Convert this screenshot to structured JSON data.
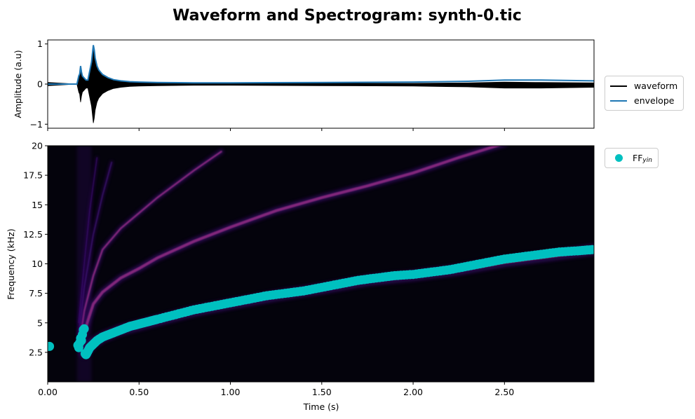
{
  "title": "Waveform and Spectrogram: synth-0.tic",
  "colors": {
    "waveform": "#000000",
    "envelope": "#1f77b4",
    "ff": "#00c0c0",
    "spectrogram_bg": "#04030c",
    "spectrogram_magma": [
      "#04030c",
      "#3b0f70",
      "#8c2981",
      "#de4968",
      "#fe9f6d"
    ]
  },
  "chart_data": [
    {
      "type": "line",
      "ylabel": "Amplitude (a.u)",
      "xlim": [
        0,
        2.99
      ],
      "ylim": [
        -1.1,
        1.1
      ],
      "yticks": [
        -1,
        0,
        1
      ],
      "ytick_labels": [
        "−1",
        "0",
        "1"
      ],
      "xticks": [
        0,
        0.5,
        1.0,
        1.5,
        2.0,
        2.5
      ],
      "grid": false,
      "legend_placement": "outside-right",
      "series": [
        {
          "name": "waveform",
          "x": [
            0,
            0.16,
            0.17,
            0.175,
            0.18,
            0.185,
            0.19,
            0.2,
            0.21,
            0.22,
            0.24,
            0.25,
            0.255,
            0.26,
            0.27,
            0.28,
            0.3,
            0.33,
            0.36,
            0.4,
            0.45,
            0.5,
            0.6,
            0.8,
            1.0,
            1.5,
            2.0,
            2.3,
            2.5,
            2.7,
            2.99
          ],
          "upper": [
            0.04,
            0.0,
            0.2,
            0.25,
            0.42,
            0.3,
            0.2,
            0.15,
            0.1,
            0.1,
            0.55,
            0.95,
            0.85,
            0.65,
            0.45,
            0.35,
            0.24,
            0.16,
            0.11,
            0.07,
            0.05,
            0.04,
            0.03,
            0.02,
            0.02,
            0.02,
            0.02,
            0.03,
            0.05,
            0.04,
            0.03
          ],
          "lower": [
            -0.04,
            0.0,
            -0.2,
            -0.25,
            -0.45,
            -0.3,
            -0.2,
            -0.15,
            -0.1,
            -0.1,
            -0.55,
            -0.97,
            -0.85,
            -0.65,
            -0.45,
            -0.35,
            -0.24,
            -0.16,
            -0.11,
            -0.08,
            -0.06,
            -0.05,
            -0.04,
            -0.03,
            -0.03,
            -0.04,
            -0.05,
            -0.07,
            -0.1,
            -0.1,
            -0.08
          ]
        },
        {
          "name": "envelope",
          "x": [
            0,
            0.16,
            0.17,
            0.175,
            0.18,
            0.185,
            0.19,
            0.2,
            0.21,
            0.22,
            0.24,
            0.25,
            0.255,
            0.26,
            0.27,
            0.28,
            0.3,
            0.33,
            0.36,
            0.4,
            0.45,
            0.5,
            0.6,
            0.8,
            1.0,
            1.5,
            2.0,
            2.3,
            2.5,
            2.7,
            2.99
          ],
          "y": [
            0.0,
            0.0,
            0.2,
            0.25,
            0.45,
            0.3,
            0.2,
            0.15,
            0.1,
            0.1,
            0.55,
            0.97,
            0.85,
            0.65,
            0.45,
            0.35,
            0.24,
            0.16,
            0.11,
            0.08,
            0.06,
            0.05,
            0.04,
            0.03,
            0.03,
            0.04,
            0.05,
            0.07,
            0.1,
            0.1,
            0.08
          ]
        }
      ]
    },
    {
      "type": "heatmap",
      "xlabel": "Time (s)",
      "ylabel": "Frequency (kHz)",
      "xlim": [
        0,
        2.99
      ],
      "ylim": [
        0,
        20
      ],
      "xticks": [
        0,
        0.5,
        1.0,
        1.5,
        2.0,
        2.5
      ],
      "xtick_labels": [
        "0.00",
        "0.50",
        "1.00",
        "1.50",
        "2.00",
        "2.50"
      ],
      "yticks": [
        2.5,
        5,
        7.5,
        10,
        12.5,
        15,
        17.5,
        20
      ],
      "ytick_labels": [
        "2.5",
        "5",
        "7.5",
        "10",
        "12.5",
        "15",
        "17.5",
        "20"
      ],
      "grid": false,
      "legend_placement": "outside-right",
      "harmonics": [
        {
          "x": [
            0.2,
            0.25,
            0.3,
            0.4,
            0.5,
            0.6,
            0.8,
            1.0,
            1.25,
            1.5,
            1.75,
            2.0,
            2.25,
            2.5,
            2.75,
            2.99
          ],
          "y": [
            2.5,
            3.3,
            3.8,
            4.4,
            4.8,
            5.2,
            6.0,
            6.6,
            7.3,
            7.9,
            8.6,
            9.0,
            9.5,
            10.2,
            10.7,
            11.2
          ]
        },
        {
          "x": [
            0.18,
            0.22,
            0.25,
            0.3,
            0.4,
            0.5,
            0.6,
            0.8,
            1.0,
            1.25,
            1.5,
            1.75,
            2.0,
            2.25,
            2.5
          ],
          "y": [
            3.2,
            5.2,
            6.6,
            7.6,
            8.8,
            9.6,
            10.5,
            11.9,
            13.1,
            14.5,
            15.6,
            16.6,
            17.7,
            19.0,
            20.2
          ]
        },
        {
          "x": [
            0.17,
            0.2,
            0.25,
            0.3,
            0.4,
            0.5,
            0.6,
            0.8,
            0.95
          ],
          "y": [
            3.0,
            6.0,
            9.0,
            11.2,
            13.0,
            14.3,
            15.6,
            17.9,
            19.5
          ]
        },
        {
          "x": [
            0.17,
            0.2,
            0.25,
            0.3,
            0.35
          ],
          "y": [
            4.0,
            8.0,
            12.5,
            15.8,
            18.6
          ]
        },
        {
          "x": [
            0.17,
            0.2,
            0.23,
            0.27
          ],
          "y": [
            5.0,
            10.0,
            14.5,
            19.0
          ]
        }
      ],
      "series": [
        {
          "name": "FF",
          "name_subscript": "yin",
          "x": [
            0.0,
            0.01,
            0.165,
            0.17,
            0.175,
            0.18,
            0.185,
            0.19,
            0.195,
            0.2,
            0.205,
            0.21,
            0.22,
            0.23,
            0.25,
            0.27,
            0.3,
            0.35,
            0.4,
            0.45,
            0.5,
            0.55,
            0.6,
            0.7,
            0.8,
            0.9,
            1.0,
            1.1,
            1.2,
            1.3,
            1.4,
            1.5,
            1.6,
            1.7,
            1.8,
            1.9,
            2.0,
            2.1,
            2.2,
            2.3,
            2.4,
            2.5,
            2.6,
            2.7,
            2.8,
            2.9,
            2.98
          ],
          "y": [
            3.0,
            3.0,
            3.1,
            2.9,
            3.3,
            3.7,
            3.5,
            4.0,
            4.4,
            4.5,
            2.4,
            2.3,
            2.6,
            2.9,
            3.2,
            3.5,
            3.8,
            4.1,
            4.4,
            4.7,
            4.9,
            5.1,
            5.3,
            5.7,
            6.1,
            6.4,
            6.7,
            7.0,
            7.3,
            7.5,
            7.7,
            8.0,
            8.3,
            8.6,
            8.8,
            9.0,
            9.1,
            9.3,
            9.5,
            9.8,
            10.1,
            10.4,
            10.6,
            10.8,
            11.0,
            11.1,
            11.2
          ]
        }
      ]
    }
  ]
}
